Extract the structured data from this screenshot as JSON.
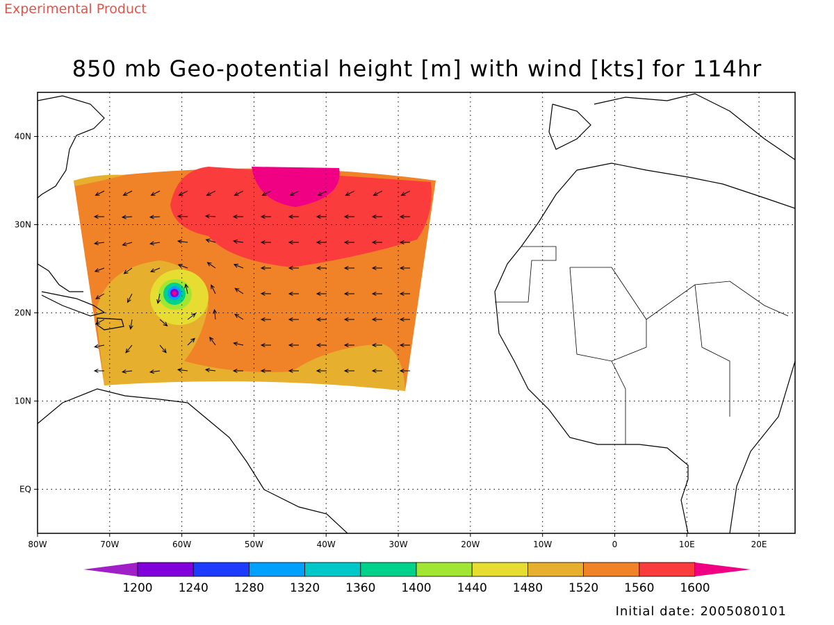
{
  "header": {
    "experimental_label": "Experimental Product",
    "title": "850 mb Geo-potential height [m] with wind [kts] for 114hr",
    "initial_date": "Initial date: 2005080101"
  },
  "map": {
    "lon_range": [
      -80,
      25
    ],
    "lat_range": [
      -5,
      45
    ],
    "lon_ticks": [
      {
        "value": -80,
        "label": "80W"
      },
      {
        "value": -70,
        "label": "70W"
      },
      {
        "value": -60,
        "label": "60W"
      },
      {
        "value": -50,
        "label": "50W"
      },
      {
        "value": -40,
        "label": "40W"
      },
      {
        "value": -30,
        "label": "30W"
      },
      {
        "value": -20,
        "label": "20W"
      },
      {
        "value": -10,
        "label": "10W"
      },
      {
        "value": 0,
        "label": "0"
      },
      {
        "value": 10,
        "label": "10E"
      },
      {
        "value": 20,
        "label": "20E"
      }
    ],
    "lat_ticks": [
      {
        "value": 0,
        "label": "EQ"
      },
      {
        "value": 10,
        "label": "10N"
      },
      {
        "value": 20,
        "label": "20N"
      },
      {
        "value": 30,
        "label": "30N"
      },
      {
        "value": 40,
        "label": "40N"
      }
    ],
    "grid": true,
    "colorbar": {
      "labels": [
        "1200",
        "1240",
        "1280",
        "1320",
        "1360",
        "1400",
        "1440",
        "1480",
        "1520",
        "1560",
        "1600"
      ],
      "colors": [
        "#a020c8",
        "#8200dc",
        "#1e3cff",
        "#00a0ff",
        "#00c8c8",
        "#00d28c",
        "#a0e632",
        "#e6dc32",
        "#e6af2d",
        "#f08228",
        "#fa3c3c",
        "#f00082"
      ]
    },
    "cyclone_center": {
      "lon": -61,
      "lat": 22
    }
  }
}
